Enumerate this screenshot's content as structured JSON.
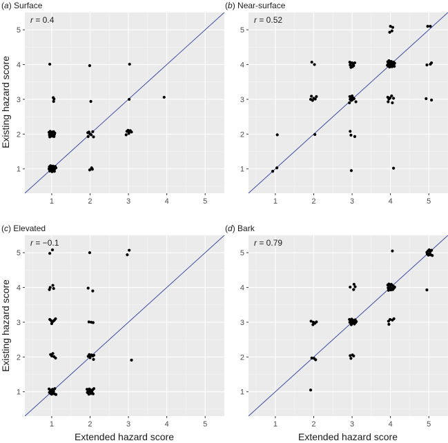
{
  "colors": {
    "panel_background": "#ebebeb",
    "grid_major": "#ffffff",
    "grid_minor": "#f4f4f4",
    "identity_line": "#3b4ba3",
    "point": "#000000",
    "tick_text": "#4d4d4d"
  },
  "figure": {
    "xlabel": "Extended hazard score",
    "ylabel": "Existing hazard score"
  },
  "chart_data": [
    {
      "type": "scatter",
      "panel_letter": "a",
      "panel_name": "Surface",
      "r_symbol": "r",
      "r_value": "= 0.4",
      "xlim": [
        0.3,
        5.5
      ],
      "ylim": [
        0.3,
        5.5
      ],
      "xticks": [
        1,
        2,
        3,
        4,
        5
      ],
      "yticks": [
        1,
        2,
        3,
        4,
        5
      ],
      "identity_line": true,
      "points": [
        [
          0.95,
          4.01
        ],
        [
          1.04,
          3.05
        ],
        [
          1.06,
          3.01
        ],
        [
          1.05,
          2.94
        ],
        [
          0.93,
          2.05
        ],
        [
          0.96,
          2.08
        ],
        [
          0.99,
          2.04
        ],
        [
          1.02,
          2.06
        ],
        [
          1.05,
          2.07
        ],
        [
          1.08,
          2.03
        ],
        [
          0.94,
          1.98
        ],
        [
          0.97,
          1.96
        ],
        [
          1.0,
          2.0
        ],
        [
          1.03,
          1.97
        ],
        [
          1.07,
          1.99
        ],
        [
          0.95,
          1.92
        ],
        [
          1.01,
          1.94
        ],
        [
          1.06,
          1.93
        ],
        [
          0.94,
          1.06
        ],
        [
          0.97,
          1.09
        ],
        [
          1.0,
          1.05
        ],
        [
          1.03,
          1.08
        ],
        [
          1.06,
          1.04
        ],
        [
          1.09,
          1.07
        ],
        [
          0.93,
          1.0
        ],
        [
          0.96,
          1.02
        ],
        [
          0.99,
          0.98
        ],
        [
          1.02,
          1.01
        ],
        [
          1.05,
          0.97
        ],
        [
          1.08,
          1.0
        ],
        [
          0.95,
          0.94
        ],
        [
          0.98,
          0.96
        ],
        [
          1.01,
          0.92
        ],
        [
          1.04,
          0.95
        ],
        [
          1.07,
          0.93
        ],
        [
          1.11,
          1.03
        ],
        [
          1.99,
          3.97
        ],
        [
          2.02,
          2.94
        ],
        [
          1.94,
          2.04
        ],
        [
          1.97,
          2.06
        ],
        [
          2.0,
          2.0
        ],
        [
          2.03,
          1.98
        ],
        [
          2.07,
          2.07
        ],
        [
          1.95,
          1.93
        ],
        [
          2.09,
          1.92
        ],
        [
          1.99,
          0.97
        ],
        [
          2.04,
          1.03
        ],
        [
          2.06,
          0.99
        ],
        [
          3.03,
          4.01
        ],
        [
          3.02,
          3.0
        ],
        [
          2.96,
          2.08
        ],
        [
          2.99,
          2.11
        ],
        [
          3.02,
          2.07
        ],
        [
          3.05,
          2.1
        ],
        [
          3.08,
          2.06
        ],
        [
          2.94,
          1.98
        ],
        [
          3.01,
          2.02
        ],
        [
          3.93,
          3.06
        ]
      ]
    },
    {
      "type": "scatter",
      "panel_letter": "b",
      "panel_name": "Near-surface",
      "r_symbol": "r",
      "r_value": "= 0.52",
      "xlim": [
        0.3,
        5.5
      ],
      "ylim": [
        0.3,
        5.5
      ],
      "xticks": [
        1,
        2,
        3,
        4,
        5
      ],
      "yticks": [
        1,
        2,
        3,
        4,
        5
      ],
      "identity_line": true,
      "points": [
        [
          0.93,
          0.93
        ],
        [
          1.04,
          1.03
        ],
        [
          1.05,
          1.98
        ],
        [
          1.95,
          4.07
        ],
        [
          2.02,
          4.0
        ],
        [
          1.94,
          3.09
        ],
        [
          2.07,
          3.08
        ],
        [
          1.92,
          3.0
        ],
        [
          1.97,
          2.97
        ],
        [
          2.0,
          3.03
        ],
        [
          2.04,
          3.01
        ],
        [
          2.03,
          1.99
        ],
        [
          2.94,
          4.07
        ],
        [
          2.97,
          4.04
        ],
        [
          3.0,
          4.05
        ],
        [
          3.03,
          4.02
        ],
        [
          2.95,
          3.99
        ],
        [
          2.98,
          3.96
        ],
        [
          3.01,
          3.94
        ],
        [
          3.04,
          3.97
        ],
        [
          3.07,
          4.05
        ],
        [
          2.97,
          3.92
        ],
        [
          2.94,
          3.08
        ],
        [
          2.97,
          3.06
        ],
        [
          3.0,
          3.1
        ],
        [
          3.03,
          3.04
        ],
        [
          2.95,
          3.0
        ],
        [
          2.98,
          2.97
        ],
        [
          3.01,
          2.99
        ],
        [
          3.05,
          3.02
        ],
        [
          3.1,
          2.93
        ],
        [
          2.93,
          2.9
        ],
        [
          2.95,
          2.08
        ],
        [
          2.97,
          1.97
        ],
        [
          3.07,
          1.93
        ],
        [
          2.98,
          0.95
        ],
        [
          4.0,
          5.1
        ],
        [
          4.06,
          5.07
        ],
        [
          3.98,
          4.93
        ],
        [
          4.04,
          4.97
        ],
        [
          3.93,
          4.08
        ],
        [
          3.96,
          4.11
        ],
        [
          3.99,
          4.06
        ],
        [
          4.02,
          4.09
        ],
        [
          4.05,
          4.05
        ],
        [
          4.08,
          4.07
        ],
        [
          4.11,
          4.04
        ],
        [
          3.94,
          4.01
        ],
        [
          3.97,
          4.03
        ],
        [
          4.0,
          3.99
        ],
        [
          4.03,
          4.02
        ],
        [
          4.06,
          3.98
        ],
        [
          4.09,
          4.01
        ],
        [
          3.95,
          3.95
        ],
        [
          3.98,
          3.93
        ],
        [
          4.01,
          3.96
        ],
        [
          4.04,
          3.94
        ],
        [
          4.07,
          3.97
        ],
        [
          4.1,
          3.95
        ],
        [
          3.92,
          3.98
        ],
        [
          3.93,
          3.06
        ],
        [
          4.03,
          3.1
        ],
        [
          3.96,
          3.01
        ],
        [
          3.99,
          3.04
        ],
        [
          3.94,
          2.93
        ],
        [
          4.05,
          2.9
        ],
        [
          4.08,
          3.03
        ],
        [
          4.08,
          1.02
        ],
        [
          4.97,
          5.1
        ],
        [
          5.04,
          5.1
        ],
        [
          4.95,
          3.99
        ],
        [
          5.04,
          4.01
        ],
        [
          5.07,
          4.05
        ],
        [
          4.93,
          3.02
        ],
        [
          5.07,
          2.98
        ]
      ]
    },
    {
      "type": "scatter",
      "panel_letter": "c",
      "panel_name": "Elevated",
      "r_symbol": "r",
      "r_value": "= −0.1",
      "xlim": [
        0.3,
        5.5
      ],
      "ylim": [
        0.3,
        5.5
      ],
      "xticks": [
        1,
        2,
        3,
        4,
        5
      ],
      "yticks": [
        1,
        2,
        3,
        4,
        5
      ],
      "identity_line": true,
      "points": [
        [
          0.95,
          4.98
        ],
        [
          1.02,
          5.08
        ],
        [
          0.96,
          4.0
        ],
        [
          1.03,
          4.06
        ],
        [
          0.94,
          3.94
        ],
        [
          1.05,
          3.97
        ],
        [
          0.95,
          3.08
        ],
        [
          0.98,
          3.05
        ],
        [
          1.01,
          3.0
        ],
        [
          1.04,
          3.03
        ],
        [
          1.07,
          3.06
        ],
        [
          1.1,
          3.1
        ],
        [
          1.0,
          2.96
        ],
        [
          0.97,
          2.07
        ],
        [
          1.0,
          2.03
        ],
        [
          1.03,
          2.1
        ],
        [
          1.06,
          2.01
        ],
        [
          1.1,
          1.97
        ],
        [
          0.93,
          1.08
        ],
        [
          0.96,
          1.05
        ],
        [
          0.99,
          1.0
        ],
        [
          1.02,
          1.07
        ],
        [
          1.05,
          1.02
        ],
        [
          1.08,
          1.09
        ],
        [
          0.94,
          0.98
        ],
        [
          0.97,
          0.95
        ],
        [
          1.0,
          0.93
        ],
        [
          1.03,
          0.96
        ],
        [
          1.07,
          0.94
        ],
        [
          1.11,
          0.92
        ],
        [
          0.98,
          1.02
        ],
        [
          1.99,
          5.0
        ],
        [
          1.95,
          3.98
        ],
        [
          2.07,
          3.9
        ],
        [
          1.97,
          3.01
        ],
        [
          2.03,
          3.0
        ],
        [
          2.08,
          2.99
        ],
        [
          1.95,
          2.02
        ],
        [
          1.98,
          2.07
        ],
        [
          2.01,
          2.04
        ],
        [
          2.04,
          2.06
        ],
        [
          2.07,
          2.03
        ],
        [
          2.1,
          2.05
        ],
        [
          2.09,
          1.93
        ],
        [
          2.0,
          1.98
        ],
        [
          1.92,
          1.07
        ],
        [
          1.95,
          1.04
        ],
        [
          1.98,
          1.08
        ],
        [
          2.01,
          1.05
        ],
        [
          2.04,
          1.02
        ],
        [
          2.07,
          1.06
        ],
        [
          2.1,
          1.09
        ],
        [
          1.93,
          0.98
        ],
        [
          1.96,
          0.96
        ],
        [
          1.99,
          0.99
        ],
        [
          2.02,
          0.95
        ],
        [
          2.05,
          0.98
        ],
        [
          2.08,
          0.94
        ],
        [
          1.97,
          0.93
        ],
        [
          2.0,
          1.01
        ],
        [
          2.97,
          4.94
        ],
        [
          3.02,
          5.07
        ],
        [
          3.08,
          1.91
        ]
      ]
    },
    {
      "type": "scatter",
      "panel_letter": "d",
      "panel_name": "Bark",
      "r_symbol": "r",
      "r_value": "= 0.79",
      "xlim": [
        0.3,
        5.5
      ],
      "ylim": [
        0.3,
        5.5
      ],
      "xticks": [
        1,
        2,
        3,
        4,
        5
      ],
      "yticks": [
        1,
        2,
        3,
        4,
        5
      ],
      "identity_line": true,
      "points": [
        [
          1.92,
          1.05
        ],
        [
          1.95,
          1.97
        ],
        [
          2.01,
          1.96
        ],
        [
          2.05,
          1.92
        ],
        [
          1.93,
          3.03
        ],
        [
          1.99,
          3.0
        ],
        [
          2.03,
          2.97
        ],
        [
          2.07,
          3.01
        ],
        [
          1.98,
          2.93
        ],
        [
          2.95,
          4.01
        ],
        [
          3.05,
          4.09
        ],
        [
          3.08,
          4.02
        ],
        [
          3.04,
          3.94
        ],
        [
          2.93,
          3.08
        ],
        [
          2.96,
          3.05
        ],
        [
          2.99,
          3.09
        ],
        [
          3.02,
          3.06
        ],
        [
          3.05,
          3.03
        ],
        [
          3.08,
          3.07
        ],
        [
          3.11,
          3.02
        ],
        [
          2.94,
          3.0
        ],
        [
          2.97,
          2.97
        ],
        [
          3.0,
          3.01
        ],
        [
          3.03,
          2.98
        ],
        [
          3.06,
          2.95
        ],
        [
          3.09,
          2.99
        ],
        [
          2.98,
          2.93
        ],
        [
          2.95,
          2.04
        ],
        [
          3.01,
          2.06
        ],
        [
          3.04,
          2.03
        ],
        [
          2.97,
          1.96
        ],
        [
          4.05,
          5.05
        ],
        [
          3.93,
          4.07
        ],
        [
          3.96,
          4.1
        ],
        [
          3.99,
          4.05
        ],
        [
          4.02,
          4.09
        ],
        [
          4.05,
          4.06
        ],
        [
          4.08,
          4.03
        ],
        [
          3.94,
          3.99
        ],
        [
          3.97,
          3.96
        ],
        [
          4.0,
          4.0
        ],
        [
          4.03,
          3.97
        ],
        [
          4.06,
          3.94
        ],
        [
          4.09,
          3.98
        ],
        [
          3.95,
          3.92
        ],
        [
          4.01,
          3.93
        ],
        [
          4.11,
          4.01
        ],
        [
          3.95,
          3.03
        ],
        [
          3.99,
          3.08
        ],
        [
          4.05,
          3.06
        ],
        [
          4.09,
          3.1
        ],
        [
          3.96,
          2.94
        ],
        [
          4.95,
          5.01
        ],
        [
          4.98,
          5.05
        ],
        [
          5.01,
          5.08
        ],
        [
          5.04,
          5.03
        ],
        [
          5.07,
          5.07
        ],
        [
          4.96,
          4.96
        ],
        [
          4.99,
          4.93
        ],
        [
          5.02,
          4.97
        ],
        [
          5.05,
          4.94
        ],
        [
          5.09,
          4.92
        ],
        [
          4.95,
          3.93
        ]
      ]
    }
  ]
}
